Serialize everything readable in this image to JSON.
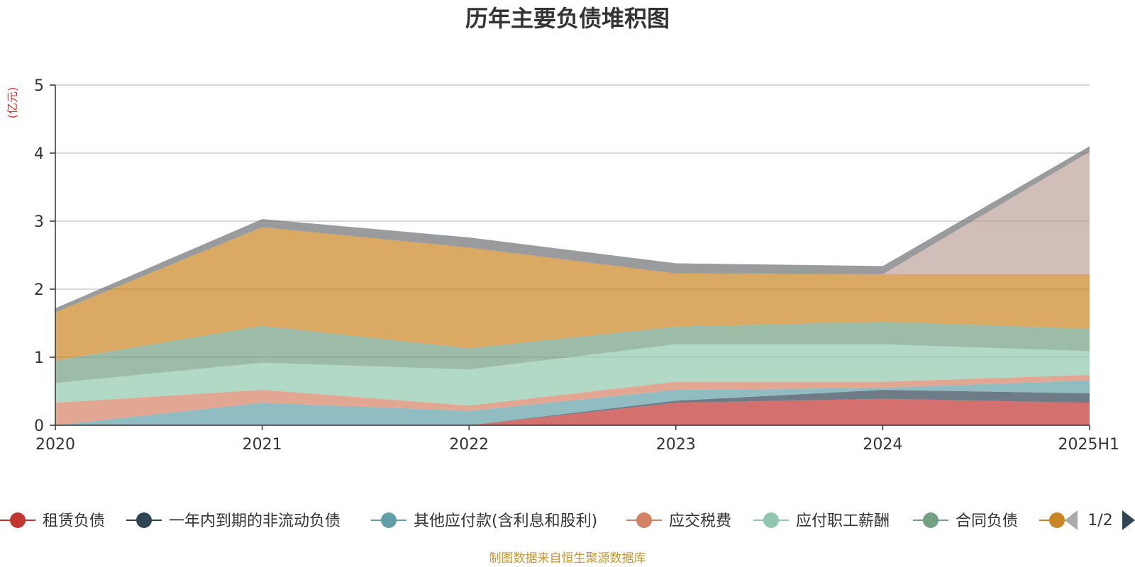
{
  "chart_data": {
    "type": "area",
    "stacked": true,
    "title": "历年主要负债堆积图",
    "unit_label": "(亿元)",
    "categories": [
      "2020",
      "2021",
      "2022",
      "2023",
      "2024",
      "2025H1"
    ],
    "ylim": [
      0,
      5
    ],
    "yticks": [
      "0",
      "1",
      "2",
      "3",
      "4",
      "5"
    ],
    "grid": true,
    "series": [
      {
        "name": "租赁负债",
        "color": "#c23531",
        "values": [
          0,
          0,
          0,
          0.33,
          0.39,
          0.33
        ]
      },
      {
        "name": "一年内到期的非流动负债",
        "color": "#2f4554",
        "values": [
          0,
          0,
          0,
          0.03,
          0.13,
          0.14
        ]
      },
      {
        "name": "其他应付款(含利息和股利)",
        "color": "#61a0a8",
        "values": [
          0,
          0.33,
          0.21,
          0.16,
          0.03,
          0.19
        ]
      },
      {
        "name": "应交税费",
        "color": "#d48265",
        "values": [
          0.33,
          0.19,
          0.08,
          0.12,
          0.09,
          0.08
        ]
      },
      {
        "name": "应付职工薪酬",
        "color": "#91c7ae",
        "values": [
          0.29,
          0.4,
          0.53,
          0.55,
          0.55,
          0.35
        ]
      },
      {
        "name": "合同负债",
        "color": "#749f83",
        "values": [
          0.33,
          0.54,
          0.31,
          0.26,
          0.33,
          0.33
        ]
      },
      {
        "name": "",
        "color": "#ca8622",
        "values": [
          0.71,
          1.45,
          1.48,
          0.78,
          0.7,
          0.8
        ]
      },
      {
        "name": "",
        "color": "#bda29a",
        "values": [
          0,
          0,
          0,
          0,
          0,
          1.8
        ]
      },
      {
        "name": "",
        "color": "#6e7074",
        "values": [
          0.06,
          0.12,
          0.15,
          0.15,
          0.12,
          0.08
        ]
      }
    ]
  },
  "legend": {
    "page": "1/2"
  },
  "source_note": "制图数据来自恒生聚源数据库"
}
